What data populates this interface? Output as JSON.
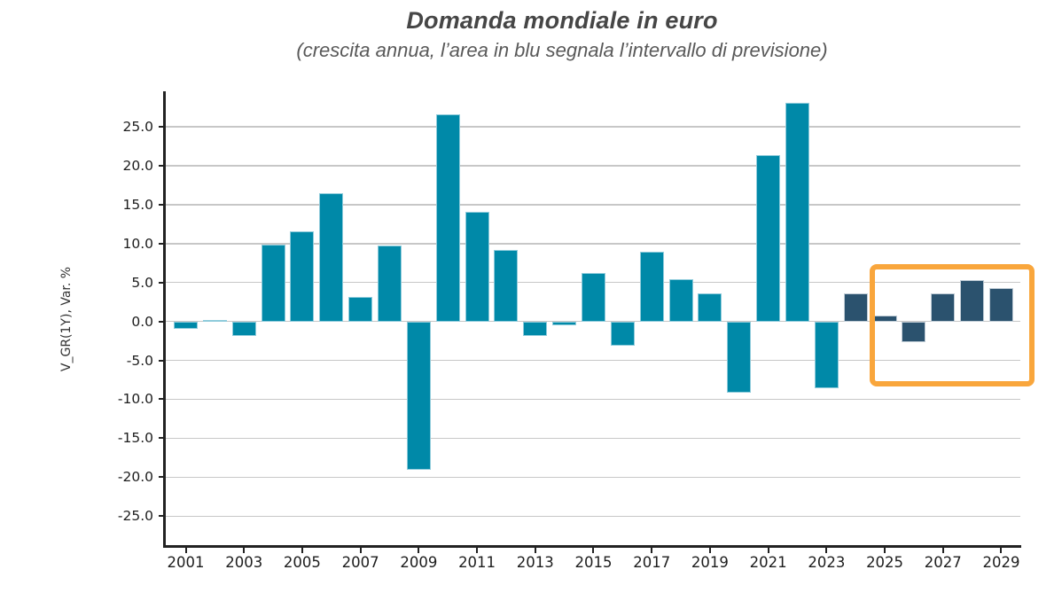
{
  "header": {
    "title": "Domanda mondiale in euro",
    "subtitle": "(crescita annua, l’area in blu segnala l’intervallo di previsione)"
  },
  "chart_data": {
    "type": "bar",
    "title": "Domanda mondiale in euro",
    "subtitle": "(crescita annua, l’area in blu segnala l’intervallo di previsione)",
    "ylabel": "V_GR(1Y), Var. %",
    "xlabel": "",
    "categories": [
      2001,
      2002,
      2003,
      2004,
      2005,
      2006,
      2007,
      2008,
      2009,
      2010,
      2011,
      2012,
      2013,
      2014,
      2015,
      2016,
      2017,
      2018,
      2019,
      2020,
      2021,
      2022,
      2023,
      2024,
      2025,
      2026,
      2027,
      2028,
      2029
    ],
    "values": [
      -0.9,
      0.2,
      -1.9,
      9.9,
      11.6,
      16.5,
      3.2,
      9.8,
      -19.1,
      26.6,
      14.1,
      9.2,
      -1.9,
      -0.5,
      6.2,
      -3.1,
      9.0,
      5.4,
      3.6,
      -9.2,
      21.4,
      28.1,
      -8.6,
      3.6,
      0.8,
      -2.7,
      3.6,
      5.3,
      4.3
    ],
    "forecast_from_year": 2024,
    "yticks": [
      25,
      20,
      15,
      10,
      5,
      0,
      -5,
      -10,
      -15,
      -20,
      -25
    ],
    "ytick_decimals": 1,
    "xticks": [
      2001,
      2003,
      2005,
      2007,
      2009,
      2011,
      2013,
      2015,
      2017,
      2019,
      2021,
      2023,
      2025,
      2027,
      2029
    ],
    "ylim": [
      -28.95,
      29.55
    ],
    "grid": true,
    "legend": "none",
    "annotation_box": {
      "x_from": 2024.48,
      "x_to": 2030.15,
      "y_from": -8.3,
      "y_to": 7.3
    },
    "colors": {
      "historical_bar": "#0089A8",
      "historical_bar_border": "#8FCBDB",
      "forecast_bar": "#2B526E",
      "forecast_bar_border": "#BFCBD5",
      "annotation_border": "#F9A63C",
      "gridline": "#C7C7C7",
      "axis": "#222222"
    }
  }
}
